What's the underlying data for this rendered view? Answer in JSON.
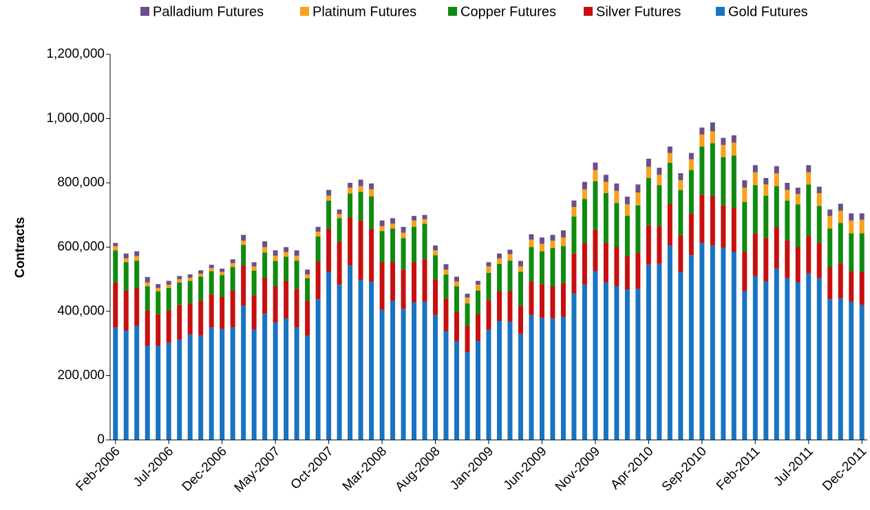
{
  "chart_data": {
    "type": "stacked_bar",
    "y_label": "Contracts",
    "categories": [
      "Feb-2006",
      null,
      null,
      null,
      null,
      "Jul-2006",
      null,
      null,
      null,
      null,
      "Dec-2006",
      null,
      null,
      null,
      null,
      "May-2007",
      null,
      null,
      null,
      null,
      "Oct-2007",
      null,
      null,
      null,
      null,
      "Mar-2008",
      null,
      null,
      null,
      null,
      "Aug-2008",
      null,
      null,
      null,
      null,
      "Jan-2009",
      null,
      null,
      null,
      null,
      "Jun-2009",
      null,
      null,
      null,
      null,
      "Nov-2009",
      null,
      null,
      null,
      null,
      "Apr-2010",
      null,
      null,
      null,
      null,
      "Sep-2010",
      null,
      null,
      null,
      null,
      "Feb-2011",
      null,
      null,
      null,
      null,
      "Jul-2011",
      null,
      null,
      null,
      null,
      "Dec-2011"
    ],
    "ylim": [
      0,
      1200000
    ],
    "yticks": [
      0,
      {
        "value": 200000,
        "label": "200,000"
      },
      {
        "value": 400000,
        "label": "400,000"
      },
      {
        "value": 600000,
        "label": "600,000"
      },
      {
        "value": 800000,
        "label": "800,000"
      },
      {
        "value": 1000000,
        "label": "1,000,000"
      },
      {
        "value": 1200000,
        "label": "1,200,000"
      }
    ],
    "legend": "top",
    "series": [
      {
        "name": "Gold Futures",
        "color": "#1874c1",
        "values": [
          350000,
          340000,
          355000,
          293000,
          293000,
          302000,
          312000,
          328000,
          325000,
          350000,
          345000,
          350000,
          418000,
          343000,
          393000,
          365000,
          378000,
          350000,
          325000,
          438000,
          523000,
          483000,
          543000,
          498000,
          493000,
          405000,
          433000,
          408000,
          428000,
          430000,
          388000,
          338000,
          307000,
          273000,
          308000,
          343000,
          370000,
          368000,
          330000,
          388000,
          380000,
          378000,
          383000,
          455000,
          483000,
          525000,
          490000,
          478000,
          468000,
          470000,
          545000,
          548000,
          605000,
          523000,
          575000,
          613000,
          605000,
          598000,
          585000,
          463000,
          510000,
          493000,
          533000,
          503000,
          490000,
          518000,
          503000,
          438000,
          440000,
          430000,
          420000
        ]
      },
      {
        "name": "Silver Futures",
        "color": "#c80f0f",
        "values": [
          140000,
          125000,
          118000,
          110000,
          97000,
          101000,
          108000,
          97000,
          108000,
          103000,
          100000,
          115000,
          125000,
          107000,
          112000,
          113000,
          117000,
          120000,
          108000,
          117000,
          135000,
          134000,
          149000,
          185000,
          164000,
          148000,
          120000,
          122000,
          125000,
          133000,
          112000,
          102000,
          91000,
          82000,
          85000,
          92000,
          93000,
          95000,
          88000,
          105000,
          105000,
          100000,
          105000,
          125000,
          130000,
          130000,
          123000,
          122000,
          105000,
          113000,
          123000,
          117000,
          130000,
          115000,
          130000,
          150000,
          155000,
          132000,
          137000,
          122000,
          133000,
          135000,
          129000,
          119000,
          110000,
          117000,
          110000,
          100000,
          110000,
          95000,
          103000
        ]
      },
      {
        "name": "Copper Futures",
        "color": "#108a10",
        "values": [
          100000,
          88000,
          85000,
          75000,
          72000,
          70000,
          70000,
          70000,
          75000,
          72000,
          68000,
          73000,
          64000,
          77000,
          78000,
          79000,
          75000,
          88000,
          70000,
          78000,
          87000,
          73000,
          75000,
          89000,
          101000,
          97000,
          105000,
          98000,
          110000,
          110000,
          75000,
          75000,
          80000,
          70000,
          72000,
          85000,
          85000,
          95000,
          105000,
          107000,
          102000,
          119000,
          115000,
          115000,
          137000,
          150000,
          155000,
          137000,
          125000,
          147000,
          147000,
          128000,
          127000,
          140000,
          135000,
          150000,
          163000,
          150000,
          163000,
          155000,
          150000,
          132000,
          128000,
          123000,
          133000,
          160000,
          115000,
          120000,
          125000,
          118000,
          120000
        ]
      },
      {
        "name": "Platinum Futures",
        "color": "#f9a11b",
        "values": [
          13000,
          12000,
          14000,
          12000,
          11000,
          10000,
          10000,
          10000,
          9000,
          10000,
          10000,
          12000,
          13000,
          13000,
          17000,
          16000,
          15000,
          15000,
          12000,
          15000,
          15000,
          13000,
          18000,
          18000,
          22000,
          15000,
          15000,
          17000,
          20000,
          14000,
          15000,
          15000,
          15000,
          18000,
          18000,
          20000,
          17000,
          20000,
          17000,
          23000,
          23000,
          23000,
          27000,
          30000,
          30000,
          35000,
          35000,
          38000,
          35000,
          40000,
          35000,
          32000,
          31000,
          30000,
          33000,
          37000,
          37000,
          38000,
          40000,
          45000,
          40000,
          35000,
          40000,
          33000,
          32000,
          38000,
          40000,
          39000,
          38000,
          40000,
          42000
        ]
      },
      {
        "name": "Palladium Futures",
        "color": "#6b4f8b",
        "values": [
          10000,
          15000,
          15000,
          17000,
          12000,
          12000,
          10000,
          10000,
          11000,
          10000,
          10000,
          12000,
          18000,
          13000,
          18000,
          17000,
          15000,
          17000,
          15000,
          15000,
          18000,
          14000,
          15000,
          20000,
          18000,
          18000,
          17000,
          18000,
          14000,
          13000,
          15000,
          17000,
          15000,
          12000,
          12000,
          13000,
          15000,
          14000,
          17000,
          17000,
          20000,
          18000,
          22000,
          20000,
          23000,
          23000,
          22000,
          23000,
          24000,
          25000,
          25000,
          22000,
          20000,
          22000,
          20000,
          22000,
          28000,
          22000,
          23000,
          23000,
          22000,
          20000,
          22000,
          22000,
          20000,
          22000,
          20000,
          20000,
          22000,
          22000,
          20000
        ]
      }
    ]
  }
}
